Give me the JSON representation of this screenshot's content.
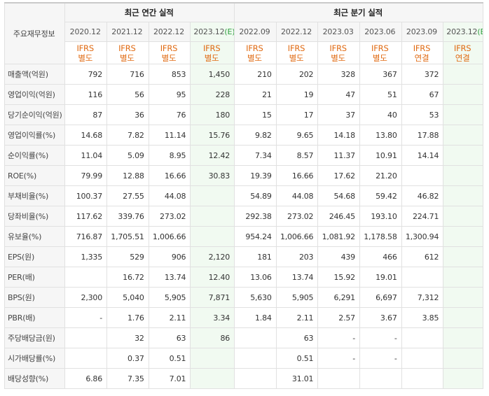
{
  "header": {
    "row_label": "주요재무정보",
    "group_annual": "최근 연간 실적",
    "group_quarter": "최근 분기 실적",
    "annual_periods": [
      "2020.12",
      "2021.12",
      "2022.12",
      "2023.12"
    ],
    "estimate_marker": "(E)",
    "quarter_periods": [
      "2022.09",
      "2022.12",
      "2023.03",
      "2023.06",
      "2023.09",
      "2023.12"
    ],
    "standards_annual": [
      [
        "IFRS",
        "별도"
      ],
      [
        "IFRS",
        "별도"
      ],
      [
        "IFRS",
        "별도"
      ],
      [
        "IFRS",
        "별도"
      ]
    ],
    "standards_quarter": [
      [
        "IFRS",
        "별도"
      ],
      [
        "IFRS",
        "별도"
      ],
      [
        "IFRS",
        "별도"
      ],
      [
        "IFRS",
        "별도"
      ],
      [
        "IFRS",
        "연결"
      ],
      [
        "IFRS",
        "연결"
      ]
    ]
  },
  "rows": [
    {
      "label": "매출액(억원)",
      "annual": [
        "792",
        "716",
        "853",
        "1,450"
      ],
      "quarter": [
        "210",
        "202",
        "328",
        "367",
        "372",
        ""
      ]
    },
    {
      "label": "영업이익(억원)",
      "annual": [
        "116",
        "56",
        "95",
        "228"
      ],
      "quarter": [
        "21",
        "19",
        "47",
        "51",
        "67",
        ""
      ]
    },
    {
      "label": "당기순이익(억원)",
      "annual": [
        "87",
        "36",
        "76",
        "180"
      ],
      "quarter": [
        "15",
        "17",
        "37",
        "40",
        "53",
        ""
      ]
    },
    {
      "label": "영업이익률(%)",
      "annual": [
        "14.68",
        "7.82",
        "11.14",
        "15.76"
      ],
      "quarter": [
        "9.82",
        "9.65",
        "14.18",
        "13.80",
        "17.88",
        ""
      ]
    },
    {
      "label": "순이익률(%)",
      "annual": [
        "11.04",
        "5.09",
        "8.95",
        "12.42"
      ],
      "quarter": [
        "7.34",
        "8.57",
        "11.37",
        "10.91",
        "14.14",
        ""
      ]
    },
    {
      "label": "ROE(%)",
      "annual": [
        "79.99",
        "12.88",
        "16.66",
        "30.83"
      ],
      "quarter": [
        "19.39",
        "16.66",
        "17.62",
        "21.20",
        "",
        ""
      ]
    },
    {
      "label": "부채비율(%)",
      "annual": [
        "100.37",
        "27.55",
        "44.08",
        ""
      ],
      "quarter": [
        "54.89",
        "44.08",
        "54.68",
        "59.42",
        "46.82",
        ""
      ]
    },
    {
      "label": "당좌비율(%)",
      "annual": [
        "117.62",
        "339.76",
        "273.02",
        ""
      ],
      "quarter": [
        "292.38",
        "273.02",
        "246.45",
        "193.10",
        "224.71",
        ""
      ]
    },
    {
      "label": "유보율(%)",
      "annual": [
        "716.87",
        "1,705.51",
        "1,006.66",
        ""
      ],
      "quarter": [
        "954.24",
        "1,006.66",
        "1,081.92",
        "1,178.58",
        "1,300.94",
        ""
      ]
    },
    {
      "label": "EPS(원)",
      "annual": [
        "1,335",
        "529",
        "906",
        "2,120"
      ],
      "quarter": [
        "181",
        "203",
        "439",
        "466",
        "612",
        ""
      ]
    },
    {
      "label": "PER(배)",
      "annual": [
        "",
        "16.72",
        "13.74",
        "12.40"
      ],
      "quarter": [
        "13.06",
        "13.74",
        "15.92",
        "19.01",
        "",
        ""
      ]
    },
    {
      "label": "BPS(원)",
      "annual": [
        "2,300",
        "5,040",
        "5,905",
        "7,871"
      ],
      "quarter": [
        "5,630",
        "5,905",
        "6,291",
        "6,697",
        "7,312",
        ""
      ]
    },
    {
      "label": "PBR(배)",
      "annual": [
        "-",
        "1.76",
        "2.11",
        "3.34"
      ],
      "quarter": [
        "1.84",
        "2.11",
        "2.57",
        "3.67",
        "3.85",
        ""
      ]
    },
    {
      "label": "주당배당금(원)",
      "annual": [
        "",
        "32",
        "63",
        "86"
      ],
      "quarter": [
        "",
        "63",
        "-",
        "-",
        "",
        ""
      ]
    },
    {
      "label": "시가배당률(%)",
      "annual": [
        "",
        "0.37",
        "0.51",
        ""
      ],
      "quarter": [
        "",
        "0.51",
        "-",
        "-",
        "",
        ""
      ]
    },
    {
      "label": "배당성향(%)",
      "annual": [
        "6.86",
        "7.35",
        "7.01",
        ""
      ],
      "quarter": [
        "",
        "31.01",
        "",
        "",
        "",
        ""
      ]
    }
  ]
}
